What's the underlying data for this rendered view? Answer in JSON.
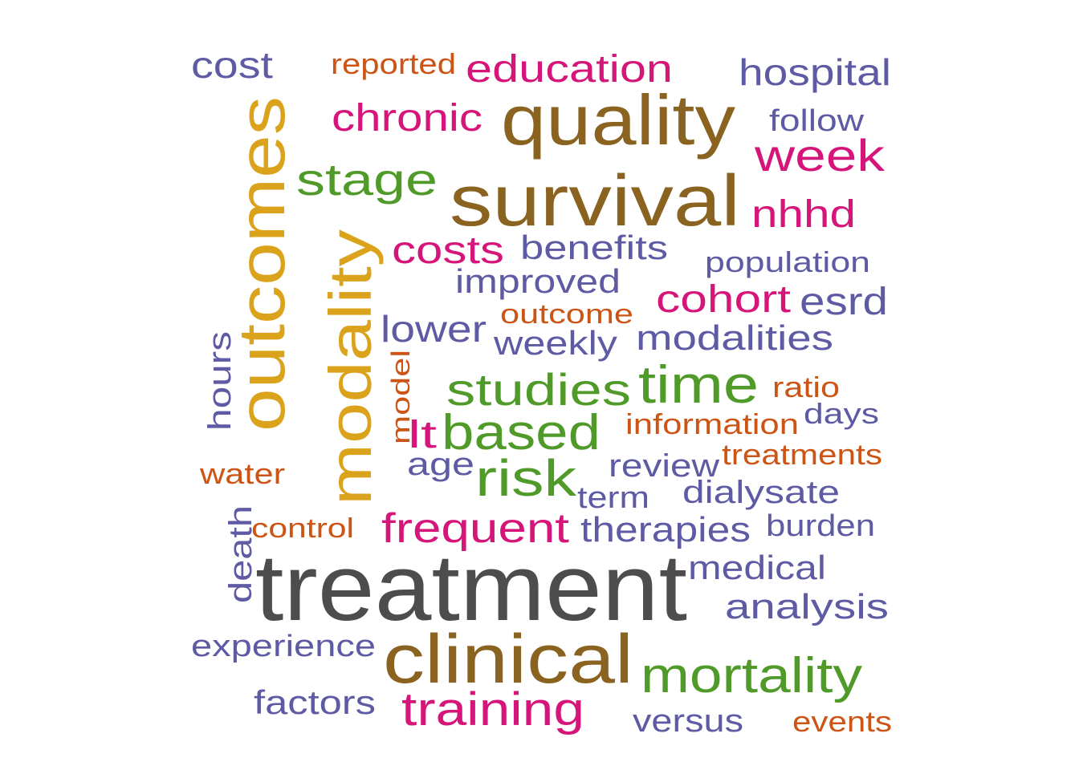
{
  "colors": {
    "dark_gray": "#4d4d4d",
    "brown": "#8b6320",
    "gold": "#dba31b",
    "green": "#4f9a28",
    "magenta": "#d6157a",
    "purple": "#5e5aa3",
    "orange": "#cc5515"
  },
  "words": [
    {
      "text": "treatment",
      "color": "dark_gray"
    },
    {
      "text": "survival",
      "color": "brown"
    },
    {
      "text": "quality",
      "color": "brown"
    },
    {
      "text": "clinical",
      "color": "brown"
    },
    {
      "text": "outcomes",
      "color": "gold"
    },
    {
      "text": "modality",
      "color": "gold"
    },
    {
      "text": "mortality",
      "color": "green"
    },
    {
      "text": "time",
      "color": "green"
    },
    {
      "text": "studies",
      "color": "green"
    },
    {
      "text": "based",
      "color": "green"
    },
    {
      "text": "risk",
      "color": "green"
    },
    {
      "text": "stage",
      "color": "green"
    },
    {
      "text": "training",
      "color": "magenta"
    },
    {
      "text": "frequent",
      "color": "magenta"
    },
    {
      "text": "week",
      "color": "magenta"
    },
    {
      "text": "education",
      "color": "magenta"
    },
    {
      "text": "chronic",
      "color": "magenta"
    },
    {
      "text": "costs",
      "color": "magenta"
    },
    {
      "text": "cohort",
      "color": "magenta"
    },
    {
      "text": "nhhd",
      "color": "magenta"
    },
    {
      "text": "lt",
      "color": "magenta"
    },
    {
      "text": "hospital",
      "color": "purple"
    },
    {
      "text": "cost",
      "color": "purple"
    },
    {
      "text": "follow",
      "color": "purple"
    },
    {
      "text": "benefits",
      "color": "purple"
    },
    {
      "text": "population",
      "color": "purple"
    },
    {
      "text": "improved",
      "color": "purple"
    },
    {
      "text": "esrd",
      "color": "purple"
    },
    {
      "text": "lower",
      "color": "purple"
    },
    {
      "text": "weekly",
      "color": "purple"
    },
    {
      "text": "modalities",
      "color": "purple"
    },
    {
      "text": "hours",
      "color": "purple"
    },
    {
      "text": "days",
      "color": "purple"
    },
    {
      "text": "age",
      "color": "purple"
    },
    {
      "text": "review",
      "color": "purple"
    },
    {
      "text": "term",
      "color": "purple"
    },
    {
      "text": "dialysate",
      "color": "purple"
    },
    {
      "text": "therapies",
      "color": "purple"
    },
    {
      "text": "burden",
      "color": "purple"
    },
    {
      "text": "death",
      "color": "purple"
    },
    {
      "text": "medical",
      "color": "purple"
    },
    {
      "text": "analysis",
      "color": "purple"
    },
    {
      "text": "experience",
      "color": "purple"
    },
    {
      "text": "factors",
      "color": "purple"
    },
    {
      "text": "versus",
      "color": "purple"
    },
    {
      "text": "reported",
      "color": "orange"
    },
    {
      "text": "outcome",
      "color": "orange"
    },
    {
      "text": "ratio",
      "color": "orange"
    },
    {
      "text": "model",
      "color": "orange"
    },
    {
      "text": "information",
      "color": "orange"
    },
    {
      "text": "treatments",
      "color": "orange"
    },
    {
      "text": "water",
      "color": "orange"
    },
    {
      "text": "control",
      "color": "orange"
    },
    {
      "text": "events",
      "color": "orange"
    }
  ]
}
